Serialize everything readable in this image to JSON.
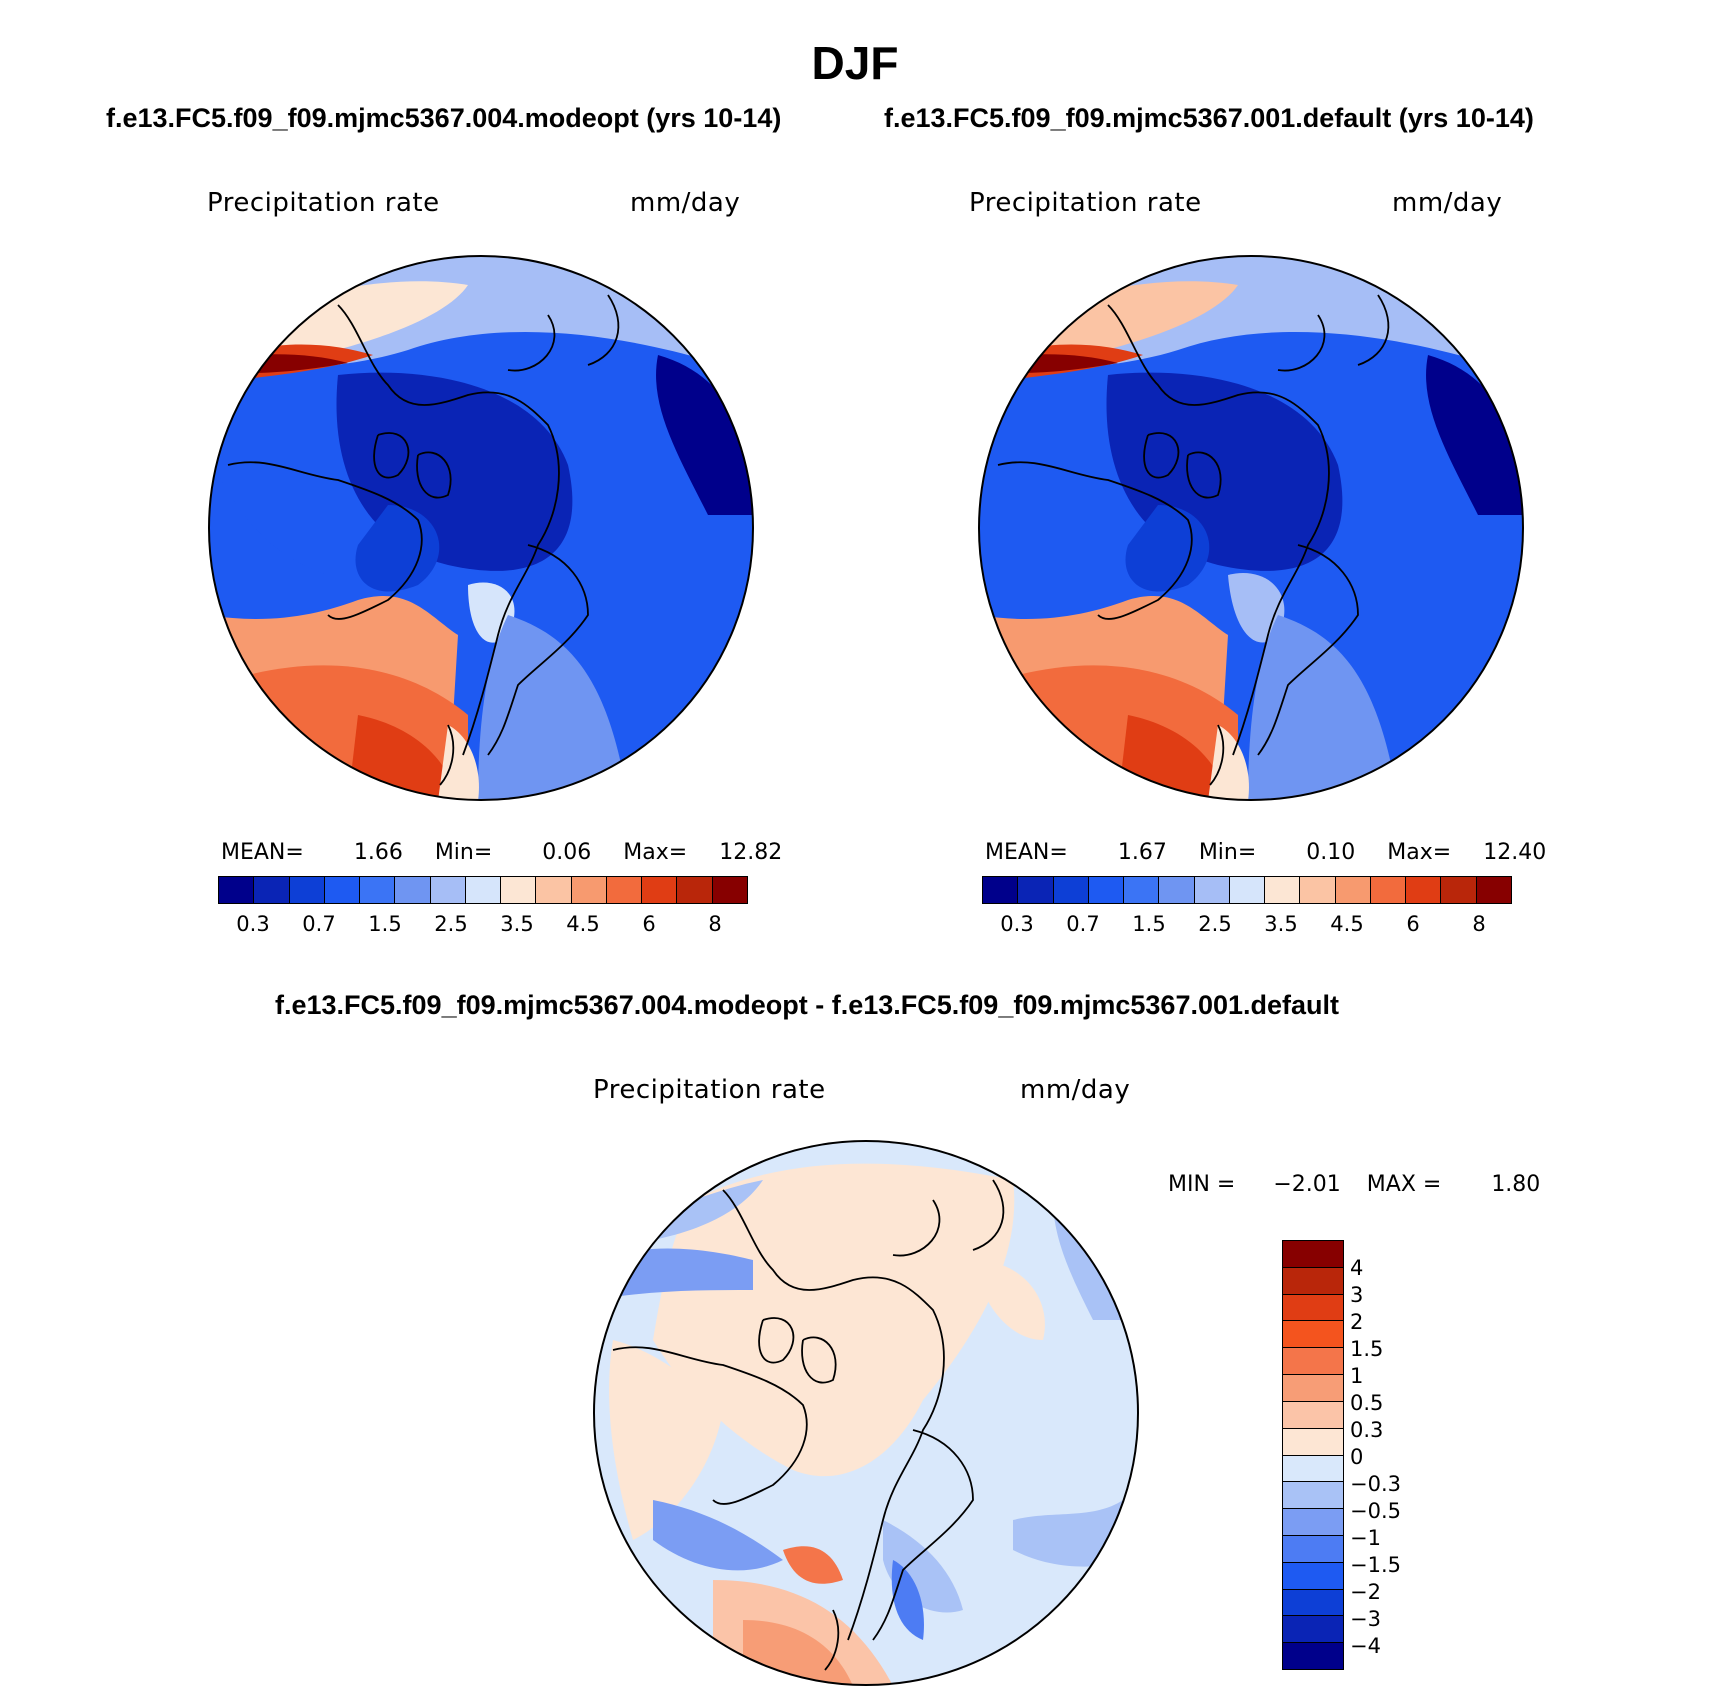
{
  "title": "DJF",
  "panels": [
    {
      "case_title": "f.e13.FC5.f09_f09.mjmc5367.004.modeopt (yrs 10-14)",
      "variable": "Precipitation rate",
      "units": "mm/day",
      "stats": {
        "mean_label": "MEAN=",
        "mean": "1.66",
        "min_label": "Min=",
        "min": "0.06",
        "max_label": "Max=",
        "max": "12.82"
      },
      "colorbar_ticks": [
        "0.3",
        "0.7",
        "1.5",
        "2.5",
        "3.5",
        "4.5",
        "6",
        "8"
      ]
    },
    {
      "case_title": "f.e13.FC5.f09_f09.mjmc5367.001.default (yrs 10-14)",
      "variable": "Precipitation rate",
      "units": "mm/day",
      "stats": {
        "mean_label": "MEAN=",
        "mean": "1.67",
        "min_label": "Min=",
        "min": "0.10",
        "max_label": "Max=",
        "max": "12.40"
      },
      "colorbar_ticks": [
        "0.3",
        "0.7",
        "1.5",
        "2.5",
        "3.5",
        "4.5",
        "6",
        "8"
      ]
    }
  ],
  "diff_panel": {
    "title": "f.e13.FC5.f09_f09.mjmc5367.004.modeopt - f.e13.FC5.f09_f09.mjmc5367.001.default",
    "variable": "Precipitation rate",
    "units": "mm/day",
    "stats": {
      "min_label": "MIN =",
      "min": "−2.01",
      "max_label": "MAX =",
      "max": "1.80"
    },
    "colorbar_ticks": [
      "4",
      "3",
      "2",
      "1.5",
      "1",
      "0.5",
      "0.3",
      "0",
      "−0.3",
      "−0.5",
      "−1",
      "−1.5",
      "−2",
      "−3",
      "−4"
    ]
  },
  "colors": {
    "abs_scale": [
      "#00008b",
      "#0a24b5",
      "#0d3fd6",
      "#1e5af2",
      "#3b74f5",
      "#6f95f2",
      "#a6bef6",
      "#d6e5fb",
      "#fce6d4",
      "#fbc4a4",
      "#f79a6f",
      "#f26b3d",
      "#e03d14",
      "#b9260a",
      "#870000"
    ],
    "diff_scale": [
      "#870000",
      "#b9260a",
      "#e03d14",
      "#f4541e",
      "#f4754a",
      "#f79d76",
      "#fbc4a8",
      "#fde6d4",
      "#d9e8fb",
      "#a9c2f6",
      "#7b9df3",
      "#4d7cf3",
      "#1e5af2",
      "#0d3fd6",
      "#0a24b5",
      "#00008b"
    ]
  }
}
